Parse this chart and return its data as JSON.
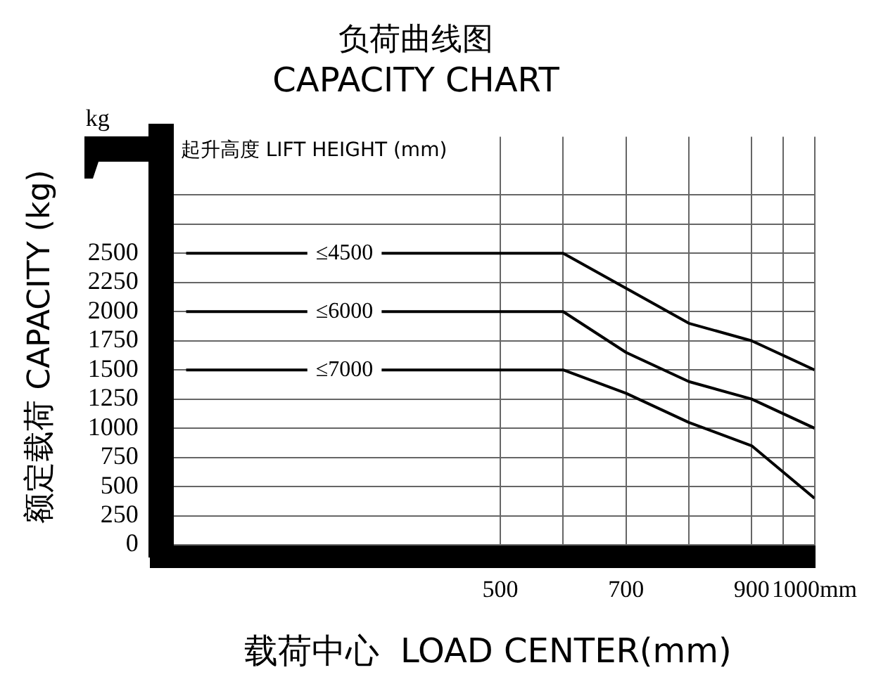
{
  "chart_data": {
    "type": "line",
    "title": "负荷曲线图",
    "subtitle": "CAPACITY CHART",
    "legend_title": "起升高度 LIFT HEIGHT (mm)",
    "xlabel": "载荷中心  LOAD CENTER(mm)",
    "ylabel": "额定载荷 CAPACITY (kg)",
    "annotations": [
      "kg"
    ],
    "x": [
      0,
      600,
      700,
      800,
      900,
      1000
    ],
    "series": [
      {
        "name": "≤4500",
        "color": "#000000",
        "values": [
          2500,
          2500,
          2200,
          1900,
          1750,
          1500
        ]
      },
      {
        "name": "≤6000",
        "color": "#000000",
        "values": [
          2000,
          2000,
          1650,
          1400,
          1250,
          1000
        ]
      },
      {
        "name": "≤7000",
        "color": "#000000",
        "values": [
          1500,
          1500,
          1300,
          1050,
          850,
          400
        ]
      }
    ],
    "xlim": [
      -40,
      1000
    ],
    "xticks": [
      500,
      {
        "value": 600,
        "label": null
      },
      700,
      {
        "value": 800,
        "label": null
      },
      900,
      {
        "value": 950,
        "label": null
      },
      {
        "value": 1000,
        "label": "1000mm"
      }
    ],
    "ylim": [
      -100,
      3500
    ],
    "yticks": [
      0,
      250,
      500,
      750,
      1000,
      1250,
      1500,
      1750,
      2000,
      2250,
      2500,
      {
        "value": 2750,
        "label": null
      },
      {
        "value": 3000,
        "label": null
      }
    ],
    "grid": true,
    "marker": "none",
    "line_style": "solid"
  }
}
